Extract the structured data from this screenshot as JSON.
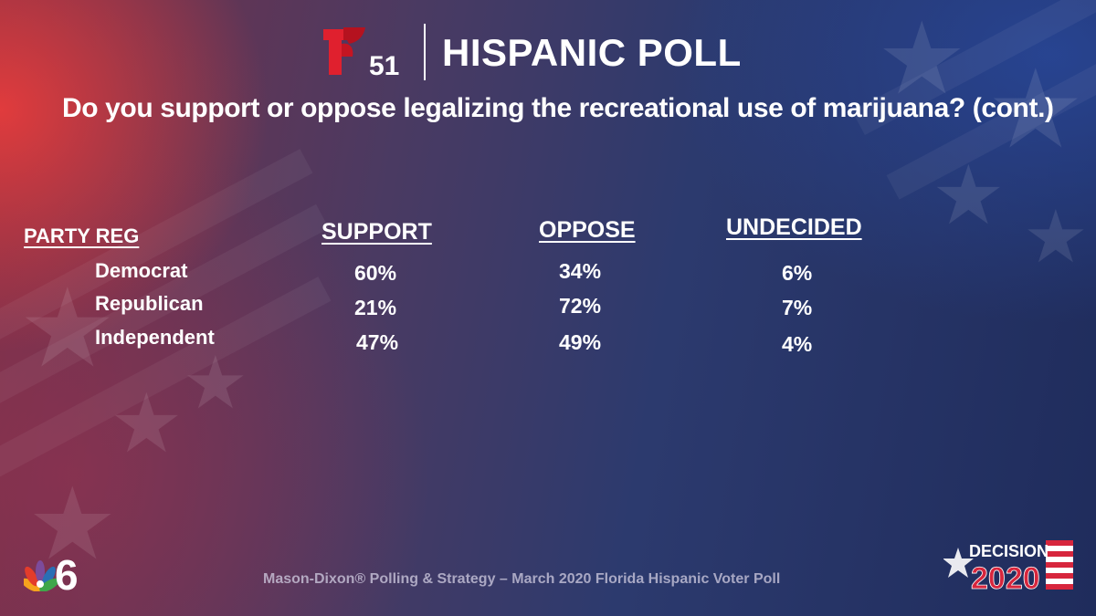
{
  "header": {
    "channel_number": "51",
    "title": "HISPANIC POLL"
  },
  "question": "Do you support or oppose legalizing the recreational use of marijuana? (cont.)",
  "table": {
    "group_header": "PARTY REG",
    "columns": [
      "SUPPORT",
      "OPPOSE",
      "UNDECIDED"
    ],
    "rows": [
      {
        "label": "Democrat",
        "values": [
          "60%",
          "34%",
          "6%"
        ]
      },
      {
        "label": "Republican",
        "values": [
          "21%",
          "72%",
          "7%"
        ]
      },
      {
        "label": "Independent",
        "values": [
          "47%",
          "49%",
          "4%"
        ]
      }
    ]
  },
  "footer": {
    "source": "Mason-Dixon® Polling & Strategy – March 2020 Florida Hispanic Voter Poll",
    "nbc_channel": "6",
    "decision_word": "DECISION",
    "decision_year": "2020"
  },
  "colors": {
    "telemundo_red": "#e0202e",
    "text": "#ffffff"
  }
}
